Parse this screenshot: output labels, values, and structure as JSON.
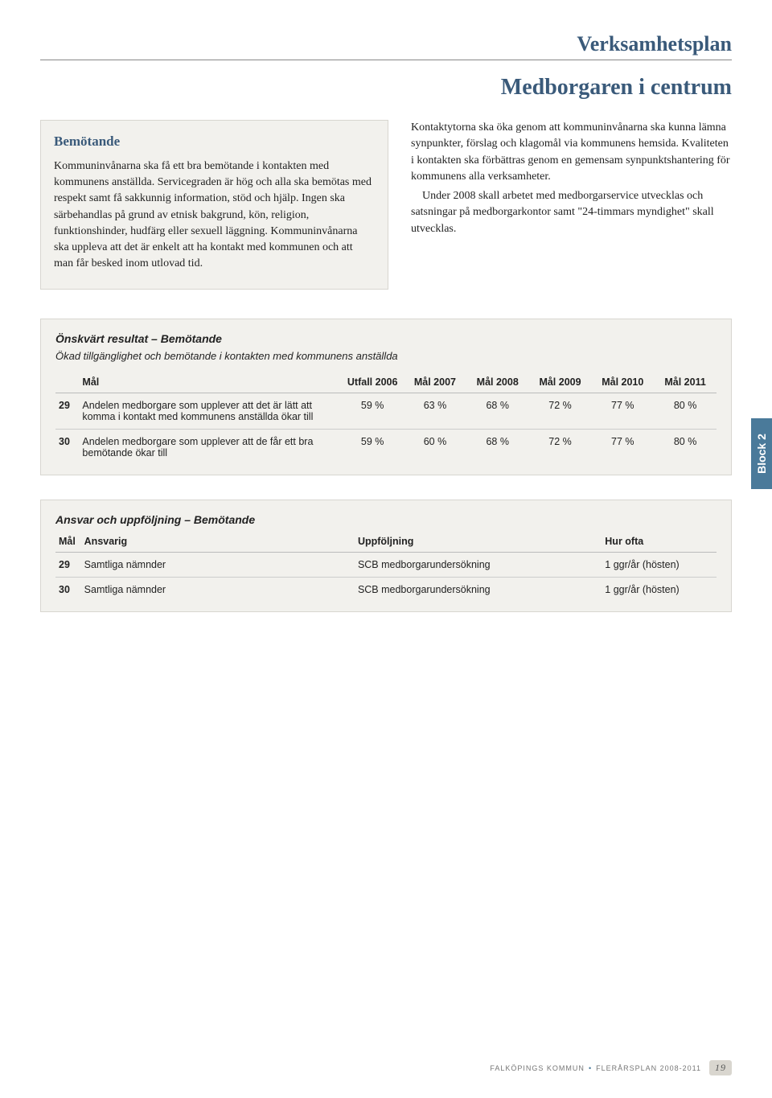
{
  "doc_title": "Verksamhetsplan",
  "main_title": "Medborgaren i centrum",
  "side_tab": "Block 2",
  "left": {
    "heading": "Bemötande",
    "body": "Kommuninvånarna ska få ett bra bemötande i kontakten med kommunens anställda. Servicegraden är hög och alla ska bemötas med respekt samt få sakkunnig information, stöd och hjälp. Ingen ska särbehandlas på grund av etnisk bakgrund, kön, religion, funktionshinder, hudfärg eller sexuell läggning. Kommuninvånarna ska uppleva att det är enkelt att ha kontakt med kommunen och att man får besked inom utlovad tid."
  },
  "right": {
    "p1": "Kontaktytorna ska öka genom att kommuninvånarna ska kunna lämna synpunkter, förslag och klagomål via kommunens hemsida. Kvaliteten i kontakten ska förbättras genom en gemensam synpunktshantering för kommunens alla verksamheter.",
    "p2": "Under 2008 skall arbetet med medborgarservice utvecklas och satsningar på medborgarkontor samt \"24-timmars myndighet\" skall utvecklas."
  },
  "table1": {
    "title": "Önskvärt resultat – Bemötande",
    "subtitle": "Ökad tillgänglighet och bemötande i kontakten med kommunens anställda",
    "headers": [
      "Mål",
      "Utfall 2006",
      "Mål 2007",
      "Mål 2008",
      "Mål 2009",
      "Mål 2010",
      "Mål 2011"
    ],
    "rows": [
      {
        "id": "29",
        "desc": "Andelen medborgare som upplever att det är lätt att komma i kontakt med kommunens anställda ökar till",
        "vals": [
          "59 %",
          "63 %",
          "68 %",
          "72 %",
          "77 %",
          "80 %"
        ]
      },
      {
        "id": "30",
        "desc": "Andelen medborgare som upplever att de får ett bra bemötande ökar till",
        "vals": [
          "59 %",
          "60 %",
          "68 %",
          "72 %",
          "77 %",
          "80 %"
        ]
      }
    ]
  },
  "table2": {
    "title": "Ansvar och uppföljning – Bemötande",
    "headers": [
      "Mål",
      "Ansvarig",
      "Uppföljning",
      "Hur ofta"
    ],
    "rows": [
      {
        "id": "29",
        "ansvarig": "Samtliga nämnder",
        "upp": "SCB medborgarundersökning",
        "hur": "1 ggr/år  (hösten)"
      },
      {
        "id": "30",
        "ansvarig": "Samtliga nämnder",
        "upp": "SCB medborgarundersökning",
        "hur": "1 ggr/år  (hösten)"
      }
    ]
  },
  "footer": {
    "org": "FALKÖPINGS KOMMUN",
    "doc": "FLERÅRSPLAN 2008-2011",
    "page": "19"
  }
}
